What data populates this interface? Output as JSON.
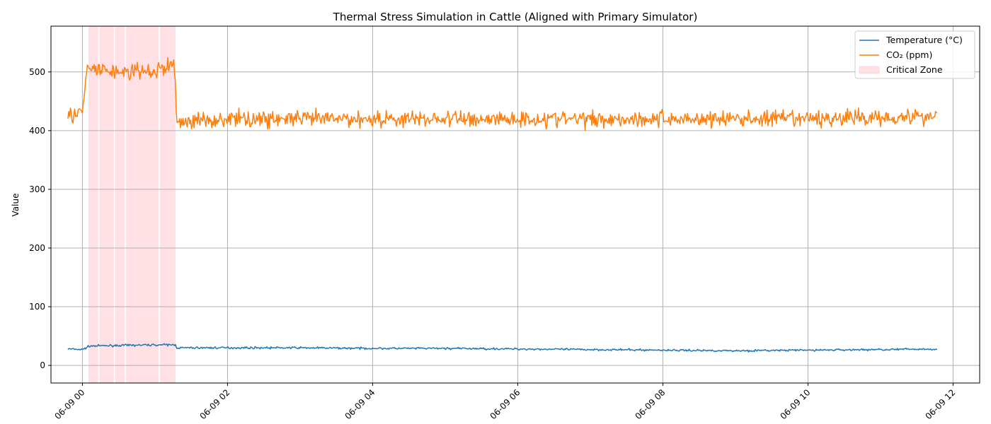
{
  "chart_data": {
    "type": "line",
    "title": "Thermal Stress Simulation in Cattle (Aligned with Primary Simulator)",
    "xlabel": "",
    "ylabel": "Value",
    "x_axis": {
      "kind": "time",
      "range": [
        "06-08 23:34",
        "06-09 12:22"
      ],
      "ticks": [
        "06-09 00",
        "06-09 02",
        "06-09 04",
        "06-09 06",
        "06-09 08",
        "06-09 10",
        "06-09 12"
      ]
    },
    "y_axis": {
      "range": [
        -30,
        578
      ],
      "ticks": [
        0,
        100,
        200,
        300,
        400,
        500
      ]
    },
    "grid": true,
    "legend": {
      "placement": "top-right",
      "entries": [
        "Temperature (°C)",
        "CO₂ (ppm)",
        "Critical Zone"
      ]
    },
    "series": [
      {
        "name": "Temperature (°C)",
        "color": "#1f77b4",
        "x": [
          "06-08 23:48",
          "06-09 00:00",
          "06-09 00:06",
          "06-09 00:30",
          "06-09 01:00",
          "06-09 01:17",
          "06-09 01:18",
          "06-09 02:00",
          "06-09 03:00",
          "06-09 04:00",
          "06-09 05:00",
          "06-09 06:00",
          "06-09 07:00",
          "06-09 08:00",
          "06-09 09:00",
          "06-09 10:00",
          "06-09 11:00",
          "06-09 11:47"
        ],
        "values": [
          28,
          27,
          33,
          34,
          35,
          35,
          30,
          30,
          30,
          29,
          29,
          28,
          27,
          26,
          25,
          26,
          27,
          28
        ]
      },
      {
        "name": "CO₂ (ppm)",
        "color": "#ff7f0e",
        "x": [
          "06-08 23:48",
          "06-09 00:00",
          "06-09 00:04",
          "06-09 00:30",
          "06-09 01:00",
          "06-09 01:16",
          "06-09 01:18",
          "06-09 02:00",
          "06-09 04:00",
          "06-09 06:00",
          "06-09 08:00",
          "06-09 10:00",
          "06-09 11:47"
        ],
        "values": [
          425,
          430,
          505,
          500,
          500,
          515,
          415,
          420,
          420,
          420,
          420,
          420,
          425
        ]
      }
    ],
    "critical_zone": {
      "name": "Critical Zone",
      "color": "#ffe0e5",
      "bands": [
        [
          "06-09 00:05",
          "06-09 00:13"
        ],
        [
          "06-09 00:14",
          "06-09 00:26"
        ],
        [
          "06-09 00:27",
          "06-09 00:35"
        ],
        [
          "06-09 00:36",
          "06-09 01:03"
        ],
        [
          "06-09 01:04",
          "06-09 01:17"
        ]
      ]
    }
  }
}
